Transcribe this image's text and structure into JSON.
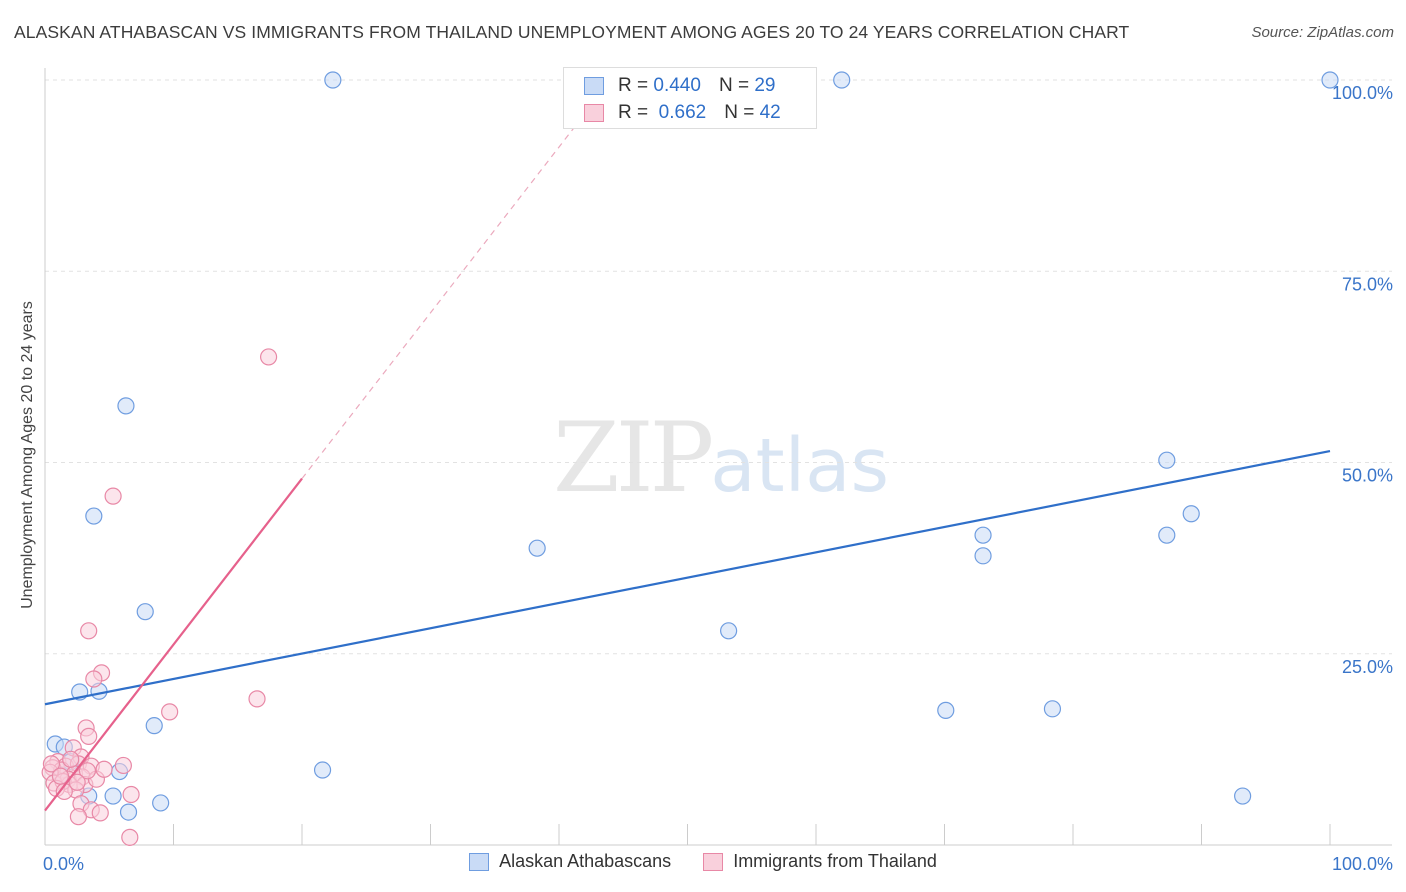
{
  "title": "ALASKAN ATHABASCAN VS IMMIGRANTS FROM THAILAND UNEMPLOYMENT AMONG AGES 20 TO 24 YEARS CORRELATION CHART",
  "source": "Source: ZipAtlas.com",
  "watermark": {
    "zip": "ZIP",
    "atlas": "atlas"
  },
  "stats": [
    {
      "r_label": "R =",
      "r_value": "0.440",
      "n_label": "N =",
      "n_value": "29",
      "color": "#6f9de0",
      "fill": "#c9dbf6"
    },
    {
      "r_label": "R =",
      "r_value": "0.662",
      "n_label": "N =",
      "n_value": "42",
      "color": "#e888a6",
      "fill": "#f9d0dc"
    }
  ],
  "legend": [
    {
      "label": "Alaskan Athabascans",
      "color": "#6f9de0",
      "fill": "#c9dbf6"
    },
    {
      "label": "Immigrants from Thailand",
      "color": "#e888a6",
      "fill": "#f9d0dc"
    }
  ],
  "chart_data": {
    "type": "scatter",
    "title": "ALASKAN ATHABASCAN VS IMMIGRANTS FROM THAILAND UNEMPLOYMENT AMONG AGES 20 TO 24 YEARS CORRELATION CHART",
    "xlabel": "",
    "ylabel": "Unemployment Among Ages 20 to 24 years",
    "xlim": [
      0,
      100
    ],
    "ylim": [
      0,
      100
    ],
    "x_tick_labels": [
      {
        "value": 0,
        "label": "0.0%"
      },
      {
        "value": 100,
        "label": "100.0%"
      }
    ],
    "y_tick_labels": [
      {
        "value": 25,
        "label": "25.0%"
      },
      {
        "value": 50,
        "label": "50.0%"
      },
      {
        "value": 75,
        "label": "75.0%"
      },
      {
        "value": 100,
        "label": "100.0%"
      }
    ],
    "series": [
      {
        "name": "Alaskan Athabascans",
        "color": "#6f9de0",
        "fill": "#c9dbf6",
        "points": [
          [
            22.4,
            100
          ],
          [
            62.0,
            100
          ],
          [
            100,
            100
          ],
          [
            6.3,
            57.4
          ],
          [
            3.8,
            43.0
          ],
          [
            38.3,
            38.8
          ],
          [
            73.0,
            37.8
          ],
          [
            73.0,
            40.5
          ],
          [
            87.3,
            40.5
          ],
          [
            89.2,
            43.3
          ],
          [
            87.3,
            50.3
          ],
          [
            7.8,
            30.5
          ],
          [
            53.2,
            28.0
          ],
          [
            4.2,
            20.1
          ],
          [
            2.7,
            20.0
          ],
          [
            8.5,
            15.6
          ],
          [
            70.1,
            17.6
          ],
          [
            78.4,
            17.8
          ],
          [
            0.8,
            13.2
          ],
          [
            1.5,
            12.8
          ],
          [
            2.0,
            10.9
          ],
          [
            5.8,
            9.6
          ],
          [
            21.6,
            9.8
          ],
          [
            3.4,
            6.4
          ],
          [
            5.3,
            6.4
          ],
          [
            9.0,
            5.5
          ],
          [
            6.5,
            4.3
          ],
          [
            93.2,
            6.4
          ],
          [
            1.2,
            9.2
          ]
        ],
        "trend": {
          "x": [
            0,
            100
          ],
          "y": [
            18.4,
            51.5
          ],
          "style": "solid"
        }
      },
      {
        "name": "Immigrants from Thailand",
        "color": "#e888a6",
        "fill": "#f9d0dc",
        "points": [
          [
            17.4,
            63.8
          ],
          [
            5.3,
            45.6
          ],
          [
            3.4,
            28.0
          ],
          [
            4.4,
            22.5
          ],
          [
            3.8,
            21.7
          ],
          [
            16.5,
            19.1
          ],
          [
            9.7,
            17.4
          ],
          [
            3.2,
            15.3
          ],
          [
            3.4,
            14.2
          ],
          [
            2.2,
            12.7
          ],
          [
            2.8,
            11.5
          ],
          [
            1.0,
            10.9
          ],
          [
            1.6,
            10.3
          ],
          [
            2.6,
            10.6
          ],
          [
            3.6,
            10.3
          ],
          [
            6.1,
            10.4
          ],
          [
            0.6,
            10.1
          ],
          [
            1.3,
            9.8
          ],
          [
            2.3,
            9.3
          ],
          [
            0.4,
            9.5
          ],
          [
            1.8,
            8.6
          ],
          [
            2.9,
            8.9
          ],
          [
            0.7,
            8.1
          ],
          [
            1.9,
            7.9
          ],
          [
            3.1,
            7.9
          ],
          [
            4.0,
            8.6
          ],
          [
            1.4,
            8.3
          ],
          [
            2.4,
            7.2
          ],
          [
            0.9,
            7.4
          ],
          [
            1.5,
            7.0
          ],
          [
            3.3,
            9.7
          ],
          [
            6.7,
            6.6
          ],
          [
            2.8,
            5.4
          ],
          [
            3.6,
            4.6
          ],
          [
            4.3,
            4.2
          ],
          [
            2.6,
            3.7
          ],
          [
            6.6,
            1.0
          ],
          [
            0.5,
            10.6
          ],
          [
            2.0,
            11.2
          ],
          [
            1.2,
            9.0
          ],
          [
            4.6,
            9.9
          ],
          [
            2.5,
            8.2
          ]
        ],
        "trend": {
          "x": [
            0,
            20
          ],
          "y": [
            4.5,
            47.9
          ],
          "style": "solid"
        },
        "trend_extension": {
          "x": [
            20,
            42.2
          ],
          "y": [
            47.9,
            96.0
          ],
          "style": "dashed"
        }
      }
    ]
  }
}
